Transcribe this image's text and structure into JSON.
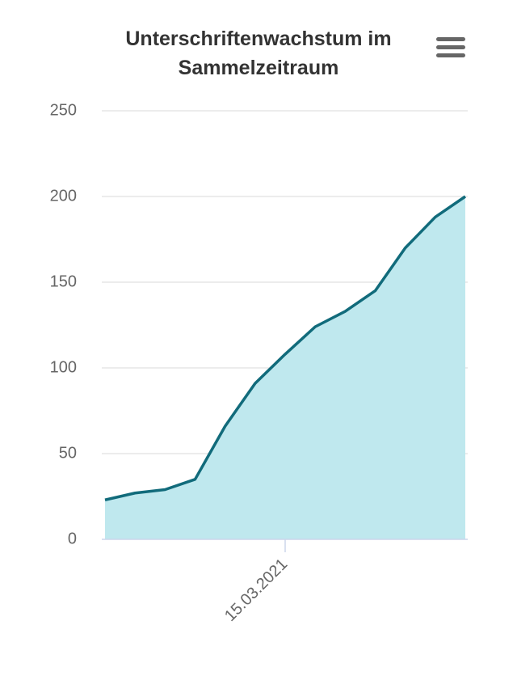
{
  "chart_data": {
    "type": "area",
    "title": "Unterschriftenwachstum im Sammelzeitraum",
    "categories": [
      null,
      null,
      null,
      null,
      null,
      null,
      "15.03.2021",
      null,
      null,
      null,
      null,
      null,
      null
    ],
    "values": [
      23,
      27,
      29,
      35,
      66,
      91,
      108,
      124,
      133,
      145,
      170,
      188,
      200
    ],
    "color": "#116b7b",
    "fill_color": "#bfe8ee",
    "ylim": [
      0,
      250
    ],
    "yticks": [
      0,
      50,
      100,
      150,
      200,
      250
    ],
    "grid": true
  }
}
